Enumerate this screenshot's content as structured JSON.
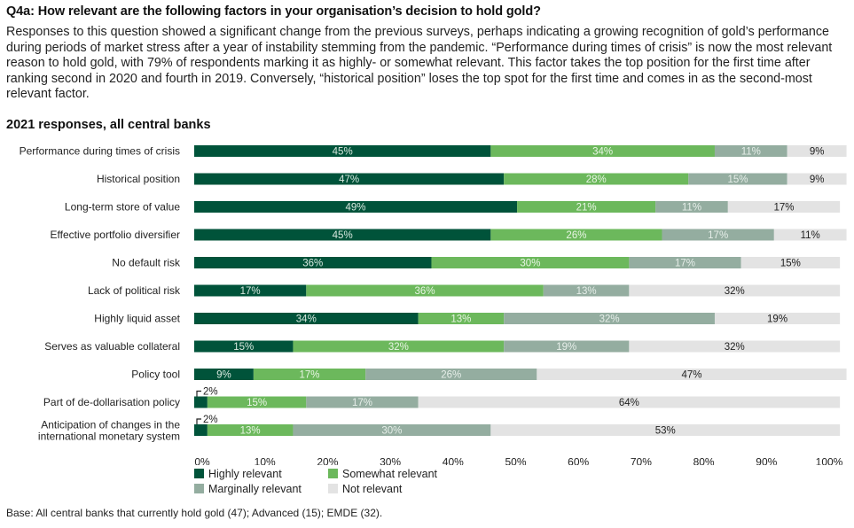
{
  "title": "Q4a: How relevant are the following factors in your organisation’s decision to hold gold?",
  "intro": "Responses to this question showed a significant change from the previous surveys, perhaps indicating a growing recognition of gold’s performance during periods of market stress after a year of instability stemming from the pandemic. “Performance during times of crisis” is now the most relevant reason to hold gold, with 79% of respondents marking it as highly- or somewhat relevant. This factor takes the top position for the first time after ranking second in 2020 and fourth in 2019. Conversely, “historical position” loses the top spot for the first time and comes in as the second-most relevant factor.",
  "subtitle": "2021 responses, all central banks",
  "footer": "Base: All central banks that currently hold gold (47); Advanced (15); EMDE (32).",
  "chart_data": {
    "type": "bar",
    "orientation": "horizontal",
    "stacked": true,
    "title": "2021 responses, all central banks",
    "xlabel": "",
    "ylabel": "",
    "xlim": [
      0,
      100
    ],
    "x_ticks": [
      "0%",
      "10%",
      "20%",
      "30%",
      "40%",
      "50%",
      "60%",
      "70%",
      "80%",
      "90%",
      "100%"
    ],
    "grid": false,
    "legend_position": "bottom",
    "categories": [
      "Performance during times of crisis",
      "Historical position",
      "Long-term store of value",
      "Effective portfolio diversifier",
      "No default risk",
      "Lack of political risk",
      "Highly liquid asset",
      "Serves as valuable collateral",
      "Policy tool",
      "Part of de-dollarisation policy",
      "Anticipation of changes in the international monetary system"
    ],
    "series": [
      {
        "name": "Highly relevant",
        "color": "#00533a",
        "label_color": "#d8e8df",
        "values": [
          45,
          47,
          49,
          45,
          36,
          17,
          34,
          15,
          9,
          2,
          2
        ]
      },
      {
        "name": "Somewhat relevant",
        "color": "#6cb85c",
        "label_color": "#e8f5e4",
        "values": [
          34,
          28,
          21,
          26,
          30,
          36,
          13,
          32,
          17,
          15,
          13
        ]
      },
      {
        "name": "Marginally relevant",
        "color": "#94ada0",
        "label_color": "#e6eee9",
        "values": [
          11,
          15,
          11,
          17,
          17,
          13,
          32,
          19,
          26,
          17,
          30
        ]
      },
      {
        "name": "Not relevant",
        "color": "#e3e3e3",
        "label_color": "#222222",
        "values": [
          9,
          9,
          17,
          11,
          15,
          32,
          19,
          32,
          47,
          64,
          53
        ]
      }
    ]
  }
}
